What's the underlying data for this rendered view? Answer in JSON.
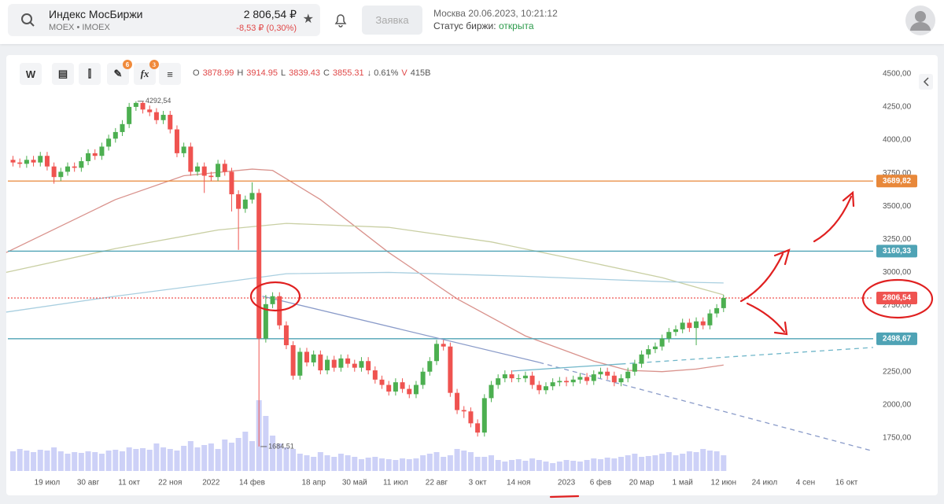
{
  "header": {
    "title": "Индекс МосБиржи",
    "ticker": "MOEX • IMOEX",
    "price": "2 806,54 ₽",
    "change": "-8,53 ₽ (0,30%)",
    "button": "Заявка",
    "datetime": "Москва 20.06.2023, 10:21:12",
    "status_label": "Статус биржи:",
    "status": "открыта"
  },
  "toolbar": {
    "interval": "W",
    "badges": [
      "6",
      "3"
    ],
    "ohlc": [
      "O",
      "3878.99",
      "H",
      "3914.95",
      "L",
      "3839.43",
      "C",
      "3855.31",
      "↓ 0.61%",
      "V",
      "415B"
    ]
  },
  "chart_data": {
    "type": "candlestick",
    "up_color": "#4caf50",
    "down_color": "#ef5350",
    "volume_color": "#cdd1f7",
    "xlim": [
      -5.75,
      120.9
    ],
    "ylim": [
      1500,
      4600
    ],
    "vlim": [
      0,
      100
    ],
    "xticks": [
      {
        "value": 0,
        "label": "19 июл"
      },
      {
        "value": 6,
        "label": "30 авг"
      },
      {
        "value": 12,
        "label": "11 окт"
      },
      {
        "value": 18,
        "label": "22 ноя"
      },
      {
        "value": 24,
        "label": "2022"
      },
      {
        "value": 30,
        "label": "14 фев"
      },
      {
        "value": 39,
        "label": "18 апр"
      },
      {
        "value": 45,
        "label": "30 май"
      },
      {
        "value": 51,
        "label": "11 июл"
      },
      {
        "value": 57,
        "label": "22 авг"
      },
      {
        "value": 63,
        "label": "3 окт"
      },
      {
        "value": 69,
        "label": "14 ноя"
      },
      {
        "value": 76,
        "label": "2023"
      },
      {
        "value": 81,
        "label": "6 фев"
      },
      {
        "value": 87,
        "label": "20 мар"
      },
      {
        "value": 93,
        "label": "1 май"
      },
      {
        "value": 99,
        "label": "12 июн"
      },
      {
        "value": 105,
        "label": "24 июл"
      },
      {
        "value": 111,
        "label": "4 сен"
      },
      {
        "value": 117,
        "label": "16 окт"
      }
    ],
    "yticks": [
      {
        "value": 1750,
        "label": "1750,00"
      },
      {
        "value": 2000,
        "label": "2000,00"
      },
      {
        "value": 2250,
        "label": "2250,00"
      },
      {
        "value": 2500,
        "label": "2500,00"
      },
      {
        "value": 2750,
        "label": "2750,00"
      },
      {
        "value": 3000,
        "label": "3000,00"
      },
      {
        "value": 3250,
        "label": "3250,00"
      },
      {
        "value": 3500,
        "label": "3500,00"
      },
      {
        "value": 3750,
        "label": "3750,00"
      },
      {
        "value": 4000,
        "label": "4000,00"
      },
      {
        "value": 4250,
        "label": "4250,00"
      },
      {
        "value": 4500,
        "label": "4500,00"
      }
    ],
    "x": [
      -5,
      -4,
      -3,
      -2,
      -1,
      0,
      1,
      2,
      3,
      4,
      5,
      6,
      7,
      8,
      9,
      10,
      11,
      12,
      13,
      14,
      15,
      16,
      17,
      18,
      19,
      20,
      21,
      22,
      23,
      24,
      25,
      26,
      27,
      28,
      29,
      30,
      31,
      32,
      33,
      34,
      35,
      36,
      37,
      38,
      39,
      40,
      41,
      42,
      43,
      44,
      45,
      46,
      47,
      48,
      49,
      50,
      51,
      52,
      53,
      54,
      55,
      56,
      57,
      58,
      59,
      60,
      61,
      62,
      63,
      64,
      65,
      66,
      67,
      68,
      69,
      70,
      71,
      72,
      73,
      74,
      75,
      76,
      77,
      78,
      79,
      80,
      81,
      82,
      83,
      84,
      85,
      86,
      87,
      88,
      89,
      90,
      91,
      92,
      93,
      94,
      95,
      96,
      97,
      98,
      99
    ],
    "open": [
      3850,
      3830,
      3820,
      3850,
      3830,
      3880,
      3800,
      3720,
      3760,
      3800,
      3790,
      3840,
      3900,
      3880,
      3950,
      4010,
      4060,
      4120,
      4250,
      4280,
      4230,
      4210,
      4150,
      4190,
      4080,
      3900,
      3950,
      3760,
      3800,
      3730,
      3720,
      3820,
      3760,
      3590,
      3480,
      3550,
      3600,
      2500,
      2760,
      2820,
      2600,
      2450,
      2220,
      2400,
      2320,
      2380,
      2260,
      2340,
      2280,
      2350,
      2310,
      2280,
      2330,
      2260,
      2190,
      2150,
      2100,
      2170,
      2120,
      2080,
      2150,
      2250,
      2330,
      2460,
      2440,
      2090,
      1960,
      1950,
      1860,
      1790,
      2050,
      2150,
      2200,
      2230,
      2200,
      2200,
      2220,
      2150,
      2110,
      2140,
      2170,
      2180,
      2170,
      2190,
      2210,
      2180,
      2230,
      2250,
      2220,
      2170,
      2200,
      2250,
      2310,
      2380,
      2420,
      2440,
      2500,
      2550,
      2570,
      2620,
      2580,
      2630,
      2600,
      2690,
      2730
    ],
    "high": [
      3880,
      3860,
      3880,
      3880,
      3910,
      3910,
      3830,
      3790,
      3830,
      3830,
      3870,
      3930,
      3930,
      3980,
      4040,
      4090,
      4150,
      4280,
      4292.54,
      4290,
      4260,
      4240,
      4220,
      4220,
      4110,
      3980,
      3980,
      3830,
      3830,
      3760,
      3850,
      3850,
      3790,
      3620,
      3580,
      3680,
      3630,
      2830,
      2850,
      2850,
      2630,
      2480,
      2430,
      2430,
      2410,
      2410,
      2370,
      2370,
      2380,
      2380,
      2340,
      2360,
      2360,
      2290,
      2220,
      2180,
      2200,
      2200,
      2150,
      2180,
      2280,
      2360,
      2490,
      2490,
      2470,
      2120,
      1990,
      1980,
      1890,
      2080,
      2180,
      2230,
      2260,
      2260,
      2230,
      2250,
      2250,
      2180,
      2170,
      2200,
      2210,
      2210,
      2220,
      2240,
      2240,
      2260,
      2280,
      2280,
      2250,
      2230,
      2280,
      2340,
      2410,
      2450,
      2470,
      2530,
      2580,
      2600,
      2650,
      2650,
      2660,
      2660,
      2720,
      2760,
      2830
    ],
    "low": [
      3800,
      3790,
      3790,
      3800,
      3800,
      3770,
      3670,
      3690,
      3730,
      3760,
      3760,
      3810,
      3850,
      3850,
      3920,
      3980,
      4030,
      4090,
      4220,
      4200,
      4180,
      4120,
      4120,
      4050,
      3870,
      3870,
      3730,
      3730,
      3600,
      3690,
      3690,
      3730,
      3460,
      3170,
      3450,
      3520,
      1684.51,
      2470,
      2730,
      2570,
      2420,
      2190,
      2190,
      2290,
      2290,
      2230,
      2230,
      2250,
      2250,
      2280,
      2250,
      2250,
      2230,
      2160,
      2120,
      2070,
      2070,
      2090,
      2050,
      2050,
      2120,
      2220,
      2300,
      2410,
      2060,
      1930,
      1900,
      1830,
      1760,
      1760,
      2020,
      2120,
      2170,
      2170,
      2170,
      2170,
      2120,
      2080,
      2080,
      2110,
      2140,
      2140,
      2140,
      2160,
      2150,
      2150,
      2200,
      2190,
      2140,
      2140,
      2170,
      2220,
      2280,
      2350,
      2390,
      2410,
      2470,
      2520,
      2540,
      2550,
      2450,
      2570,
      2570,
      2660,
      2700
    ],
    "close": [
      3830,
      3820,
      3850,
      3830,
      3880,
      3800,
      3720,
      3760,
      3800,
      3790,
      3840,
      3900,
      3880,
      3950,
      4010,
      4060,
      4120,
      4250,
      4280,
      4230,
      4210,
      4150,
      4190,
      4080,
      3900,
      3950,
      3760,
      3800,
      3730,
      3720,
      3820,
      3760,
      3590,
      3480,
      3550,
      3600,
      2500,
      2760,
      2820,
      2600,
      2450,
      2220,
      2400,
      2320,
      2380,
      2260,
      2340,
      2280,
      2350,
      2310,
      2280,
      2330,
      2260,
      2190,
      2150,
      2100,
      2170,
      2120,
      2080,
      2150,
      2250,
      2330,
      2460,
      2440,
      2090,
      1960,
      1950,
      1860,
      1790,
      2050,
      2150,
      2200,
      2230,
      2200,
      2200,
      2220,
      2150,
      2110,
      2140,
      2170,
      2180,
      2170,
      2190,
      2210,
      2180,
      2230,
      2250,
      2220,
      2170,
      2200,
      2250,
      2310,
      2380,
      2420,
      2440,
      2500,
      2550,
      2570,
      2620,
      2580,
      2630,
      2600,
      2690,
      2730,
      2806.54
    ],
    "volume": [
      25,
      28,
      26,
      24,
      27,
      26,
      30,
      25,
      22,
      24,
      23,
      25,
      24,
      22,
      26,
      27,
      25,
      30,
      28,
      29,
      27,
      35,
      30,
      28,
      26,
      32,
      38,
      30,
      33,
      35,
      28,
      40,
      36,
      42,
      50,
      38,
      90,
      70,
      45,
      35,
      30,
      28,
      22,
      20,
      18,
      24,
      20,
      18,
      22,
      20,
      18,
      15,
      17,
      18,
      16,
      15,
      14,
      16,
      15,
      16,
      20,
      22,
      24,
      18,
      20,
      28,
      26,
      24,
      18,
      18,
      20,
      14,
      12,
      14,
      15,
      13,
      16,
      14,
      12,
      10,
      12,
      14,
      13,
      12,
      14,
      16,
      15,
      17,
      16,
      18,
      20,
      22,
      18,
      19,
      20,
      22,
      24,
      20,
      22,
      25,
      24,
      28,
      26,
      25,
      20
    ],
    "ma": [
      {
        "color": "#d9928c",
        "x": [
          -6,
          0,
          10,
          20,
          30,
          33,
          40,
          50,
          60,
          70,
          80,
          85,
          90,
          95,
          99
        ],
        "values": [
          3150,
          3300,
          3550,
          3730,
          3780,
          3770,
          3550,
          3150,
          2800,
          2520,
          2330,
          2260,
          2250,
          2270,
          2300
        ]
      },
      {
        "color": "#c9cfa3",
        "x": [
          -6,
          10,
          25,
          35,
          50,
          65,
          80,
          90,
          99
        ],
        "values": [
          3000,
          3180,
          3320,
          3370,
          3340,
          3230,
          3070,
          2960,
          2830
        ]
      },
      {
        "color": "#a9cfe0",
        "x": [
          -6,
          10,
          25,
          35,
          50,
          70,
          90,
          99
        ],
        "values": [
          2700,
          2820,
          2920,
          2990,
          3000,
          2970,
          2930,
          2920
        ]
      }
    ],
    "trendlines": [
      {
        "color": "#8a9bc9",
        "x": [
          31.5,
          72,
          120.9
        ],
        "values": [
          2820,
          2320,
          1650
        ]
      },
      {
        "color": "#6fb6c9",
        "x": [
          68.1,
          84,
          120.9
        ],
        "values": [
          2255,
          2308,
          2433
        ]
      }
    ],
    "levels": [
      {
        "value": 3689.82,
        "label": "3689,82",
        "color": "#e8883a",
        "style": "solid"
      },
      {
        "value": 3160.33,
        "label": "3160,33",
        "color": "#4fa3b5",
        "style": "solid"
      },
      {
        "value": 2806.54,
        "label": "2806,54",
        "color": "#ef5350",
        "style": "dotted"
      },
      {
        "value": 2498.67,
        "label": "2498,67",
        "color": "#4fa3b5",
        "style": "solid"
      }
    ],
    "annotations": [
      {
        "x": 13,
        "value": 4292.54,
        "label": "4292,54"
      },
      {
        "x": 31,
        "value": 1684.51,
        "label": "1684,51"
      }
    ]
  }
}
